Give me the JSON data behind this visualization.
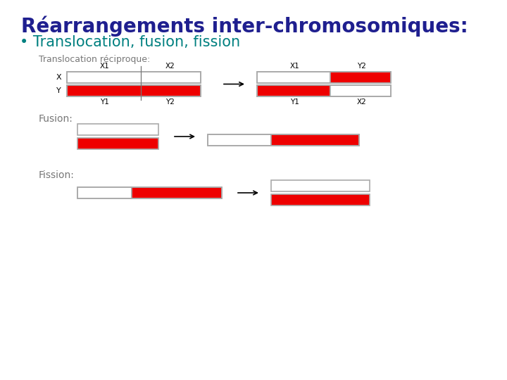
{
  "title": "Réarrangements inter-chromosomiques:",
  "title_color": "#1f1f8f",
  "subtitle": "• Translocation, fusion, fission",
  "subtitle_color": "#008080",
  "bg_color": "#ffffff",
  "section_labels": [
    "Translocation réciproque:",
    "Fusion:",
    "Fission:"
  ],
  "section_label_color": "#777777",
  "white": "#ffffff",
  "red": "#ee0000",
  "border": "#aaaaaa",
  "lw": 1.2
}
